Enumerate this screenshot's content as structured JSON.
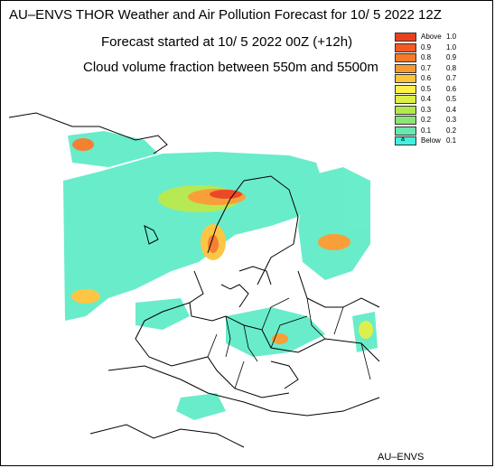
{
  "header": {
    "title": "AU–ENVS THOR Weather and Air Pollution Forecast for 10/ 5 2022  12Z",
    "forecast_start": "Forecast started at 10/ 5 2022  00Z (+12h)",
    "field": "Cloud volume fraction between 550m and 5500m"
  },
  "credit": "AU–ENVS",
  "legend": {
    "items": [
      {
        "low": "Above",
        "high": "1.0",
        "color": "#e8401c"
      },
      {
        "low": "0.9",
        "high": "1.0",
        "color": "#f05a24"
      },
      {
        "low": "0.8",
        "high": "0.9",
        "color": "#f47a2a"
      },
      {
        "low": "0.7",
        "high": "0.8",
        "color": "#f89a30"
      },
      {
        "low": "0.6",
        "high": "0.7",
        "color": "#fcc43a"
      },
      {
        "low": "0.5",
        "high": "0.6",
        "color": "#fff04a"
      },
      {
        "low": "0.4",
        "high": "0.5",
        "color": "#dcef44"
      },
      {
        "low": "0.3",
        "high": "0.4",
        "color": "#b4e84a"
      },
      {
        "low": "0.2",
        "high": "0.3",
        "color": "#8ce474"
      },
      {
        "low": "0.1",
        "high": "0.2",
        "color": "#6ae6b0"
      },
      {
        "low": "Below",
        "high": "0.1",
        "color": "#40f0e0",
        "mark": "a"
      }
    ]
  }
}
